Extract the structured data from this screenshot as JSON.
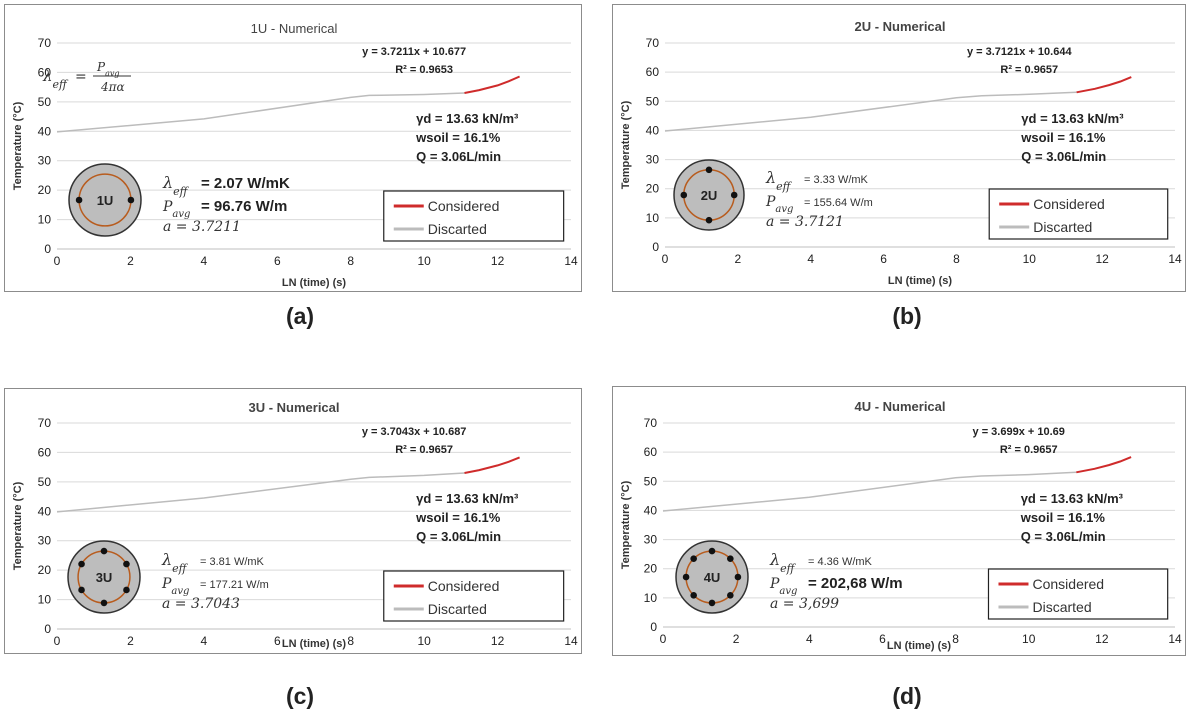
{
  "colors": {
    "considered": "#cf2b2b",
    "discarted": "#bcbcbc",
    "grid": "#d9d9d9",
    "pipe_ring": "#b85c1e",
    "pile_fill": "#bdbdbd"
  },
  "panels": [
    {
      "id": "a",
      "caption": "(a)",
      "title": "1U - Numerical",
      "ylabel": "Temperature (°C)",
      "xlabel": "LN (time) (s)",
      "equation": "y = 3.7211x + 10.677",
      "r2": "R² = 0.9653",
      "show_formula": true,
      "formula": {
        "lhs": "λeff =",
        "num": "Pavg",
        "den": "4πα"
      },
      "lambda_label": "λeff",
      "lambda_value": "= 2.07 W/mK",
      "pavg_label": "Pavg",
      "pavg_value": "= 96.76 W/m",
      "a_text": "a = 3.7211",
      "gamma": "γd = 13.63 kN/m³",
      "wsoil": "wsoil = 16.1%",
      "q": "Q = 3.06L/min",
      "pile_label": "1U",
      "legend": [
        "Considered",
        "Discarted"
      ],
      "chart_data": {
        "type": "line",
        "title": "1U - Numerical",
        "xlabel": "LN (time) (s)",
        "ylabel": "Temperature (°C)",
        "xlim": [
          0,
          14
        ],
        "ylim": [
          0,
          70
        ],
        "xticks": [
          0,
          2,
          4,
          6,
          8,
          10,
          12,
          14
        ],
        "yticks": [
          0,
          10,
          20,
          30,
          40,
          50,
          60,
          70
        ],
        "series": [
          {
            "name": "Discarted",
            "x": [
              0,
              4,
              8,
              8.5,
              10,
              11.1
            ],
            "y": [
              39.8,
              44.2,
              51.5,
              52.2,
              52.5,
              53.0
            ]
          },
          {
            "name": "Considered",
            "x": [
              11.1,
              11.5,
              12,
              12.3,
              12.6
            ],
            "y": [
              53.0,
              54.0,
              55.6,
              57.0,
              58.6
            ]
          }
        ]
      }
    },
    {
      "id": "b",
      "caption": "(b)",
      "title": "2U - Numerical",
      "ylabel": "Temperature (°C)",
      "xlabel": "LN (time) (s)",
      "equation": "y = 3.7121x + 10.644",
      "r2": "R² = 0.9657",
      "show_formula": false,
      "lambda_label": "λeff",
      "lambda_value": "= 3.33 W/mK",
      "pavg_label": "Pavg",
      "pavg_value": "= 155.64 W/m",
      "a_text": "a = 3.7121",
      "gamma": "γd = 13.63 kN/m³",
      "wsoil": "wsoil = 16.1%",
      "q": "Q = 3.06L/min",
      "pile_label": "2U",
      "legend": [
        "Considered",
        "Discarted"
      ],
      "chart_data": {
        "type": "line",
        "title": "2U - Numerical",
        "xlabel": "LN (time) (s)",
        "ylabel": "Temperature (°C)",
        "xlim": [
          0,
          14
        ],
        "ylim": [
          0,
          70
        ],
        "xticks": [
          0,
          2,
          4,
          6,
          8,
          10,
          12,
          14
        ],
        "yticks": [
          0,
          10,
          20,
          30,
          40,
          50,
          60,
          70
        ],
        "series": [
          {
            "name": "Discarted",
            "x": [
              0,
              4,
              8,
              8.7,
              10,
              11.3
            ],
            "y": [
              39.8,
              44.5,
              51.2,
              51.9,
              52.4,
              53.1
            ]
          },
          {
            "name": "Considered",
            "x": [
              11.3,
              11.8,
              12.2,
              12.5,
              12.8
            ],
            "y": [
              53.1,
              54.3,
              55.6,
              56.8,
              58.3
            ]
          }
        ]
      }
    },
    {
      "id": "c",
      "caption": "(c)",
      "title": "3U - Numerical",
      "ylabel": "Temperature (°C)",
      "xlabel": "LN (time) (s)",
      "equation": "y = 3.7043x + 10.687",
      "r2": "R² = 0.9657",
      "show_formula": false,
      "lambda_label": "λeff",
      "lambda_value": "= 3.81 W/mK",
      "pavg_label": "Pavg",
      "pavg_value": "= 177.21 W/m",
      "a_text": "a = 3.7043",
      "gamma": "γd = 13.63 kN/m³",
      "wsoil": "wsoil = 16.1%",
      "q": "Q = 3.06L/min",
      "pile_label": "3U",
      "legend": [
        "Considered",
        "Discarted"
      ],
      "chart_data": {
        "type": "line",
        "title": "3U - Numerical",
        "xlabel": "LN (time) (s)",
        "ylabel": "Temperature (°C)",
        "xlim": [
          0,
          14
        ],
        "ylim": [
          0,
          70
        ],
        "xticks": [
          0,
          2,
          4,
          6,
          8,
          10,
          12,
          14
        ],
        "yticks": [
          0,
          10,
          20,
          30,
          40,
          50,
          60,
          70
        ],
        "series": [
          {
            "name": "Discarted",
            "x": [
              0,
              4,
              8,
              8.5,
              10,
              11.1
            ],
            "y": [
              39.8,
              44.5,
              50.9,
              51.5,
              52.2,
              53.0
            ]
          },
          {
            "name": "Considered",
            "x": [
              11.1,
              11.5,
              12,
              12.3,
              12.6
            ],
            "y": [
              53.0,
              54.0,
              55.6,
              56.8,
              58.3
            ]
          }
        ]
      }
    },
    {
      "id": "d",
      "caption": "(d)",
      "title": "4U - Numerical",
      "ylabel": "Temperature (°C)",
      "xlabel": "LN (time) (s)",
      "equation": "y = 3.699x + 10.69",
      "r2": "R² = 0.9657",
      "show_formula": false,
      "lambda_label": "λeff",
      "lambda_value": "= 4.36 W/mK",
      "pavg_label": "Pavg",
      "pavg_value": "= 202,68 W/m",
      "a_text": "a = 3,699",
      "gamma": "γd = 13.63 kN/m³",
      "wsoil": "wsoil = 16.1%",
      "q": "Q = 3.06L/min",
      "pile_label": "4U",
      "legend": [
        "Considered",
        "Discarted"
      ],
      "chart_data": {
        "type": "line",
        "title": "4U - Numerical",
        "xlabel": "LN (time) (s)",
        "ylabel": "Temperature (°C)",
        "xlim": [
          0,
          14
        ],
        "ylim": [
          0,
          70
        ],
        "xticks": [
          0,
          2,
          4,
          6,
          8,
          10,
          12,
          14
        ],
        "yticks": [
          0,
          10,
          20,
          30,
          40,
          50,
          60,
          70
        ],
        "series": [
          {
            "name": "Discarted",
            "x": [
              0,
              4,
              8,
              8.7,
              10,
              11.3
            ],
            "y": [
              39.8,
              44.5,
              51.2,
              51.8,
              52.3,
              53.1
            ]
          },
          {
            "name": "Considered",
            "x": [
              11.3,
              11.8,
              12.2,
              12.5,
              12.8
            ],
            "y": [
              53.1,
              54.3,
              55.6,
              56.8,
              58.3
            ]
          }
        ]
      }
    }
  ]
}
